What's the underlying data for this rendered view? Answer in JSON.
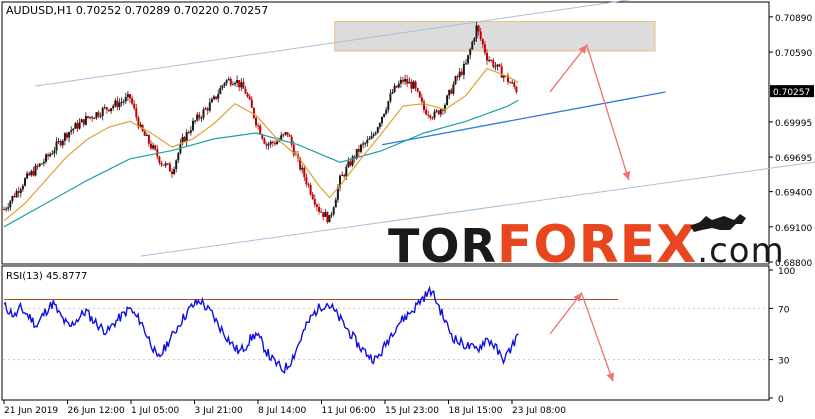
{
  "main_header": "AUDUSD,H1  0.70252 0.70289 0.70220 0.70257",
  "rsi_header": "RSI(13) 45.8777",
  "watermark": {
    "tor": "TOR",
    "forex": "FOREX",
    "com": ".com"
  },
  "colors": {
    "candle_up": "#1a1a1a",
    "candle_down": "#c00000",
    "ma_fast": "#e0a030",
    "ma_slow": "#1aa3a3",
    "channel": "#a8c0d8",
    "support": "#2f78d6",
    "resistance_zone": "#d9d9d9",
    "forecast": "#f07070",
    "rsi_line": "#1010e0",
    "rsi_resistance": "#a0522d",
    "watermark_dark": "#1a1a1a",
    "watermark_accent": "#e8461e"
  },
  "chart_data": [
    {
      "type": "candlestick",
      "symbol": "AUDUSD",
      "timeframe": "H1",
      "ohlc_last": {
        "open": 0.70252,
        "high": 0.70289,
        "low": 0.7022,
        "close": 0.70257
      },
      "current_price": "0.70257",
      "y_ticks": [
        "0.70890",
        "0.70590",
        "0.70257",
        "0.69995",
        "0.69695",
        "0.69400",
        "0.69100",
        "0.68800"
      ],
      "ylim": [
        0.688,
        0.71
      ],
      "x_ticks": [
        "21 Jun 2019",
        "26 Jun 12:00",
        "1 Jul 05:00",
        "3 Jul 21:00",
        "8 Jul 14:00",
        "11 Jul 06:00",
        "15 Jul 23:00",
        "18 Jul 15:00",
        "23 Jul 08:00"
      ],
      "close_path": [
        [
          0,
          0.6925
        ],
        [
          2,
          0.695
        ],
        [
          4,
          0.6968
        ],
        [
          6,
          0.699
        ],
        [
          8,
          0.7003
        ],
        [
          10,
          0.7012
        ],
        [
          12,
          0.702
        ],
        [
          13,
          0.6993
        ],
        [
          15,
          0.6965
        ],
        [
          16,
          0.6958
        ],
        [
          17,
          0.6983
        ],
        [
          18,
          0.6998
        ],
        [
          20,
          0.7018
        ],
        [
          21,
          0.7034
        ],
        [
          22,
          0.7036
        ],
        [
          23,
          0.7025
        ],
        [
          24,
          0.7
        ],
        [
          25,
          0.698
        ],
        [
          26,
          0.6983
        ],
        [
          27,
          0.699
        ],
        [
          28,
          0.6965
        ],
        [
          29,
          0.6945
        ],
        [
          30,
          0.6925
        ],
        [
          31,
          0.6916
        ],
        [
          32,
          0.695
        ],
        [
          33,
          0.6965
        ],
        [
          34,
          0.6978
        ],
        [
          35,
          0.6985
        ],
        [
          36,
          0.7005
        ],
        [
          37,
          0.7025
        ],
        [
          38,
          0.7035
        ],
        [
          39,
          0.703
        ],
        [
          40,
          0.701
        ],
        [
          41,
          0.7005
        ],
        [
          42,
          0.7015
        ],
        [
          43,
          0.7035
        ],
        [
          44,
          0.7048
        ],
        [
          45,
          0.708
        ],
        [
          46,
          0.7055
        ],
        [
          47,
          0.7045
        ],
        [
          48,
          0.7035
        ],
        [
          49,
          0.7025
        ]
      ],
      "ma_fast_path": [
        [
          0,
          0.6915
        ],
        [
          2,
          0.693
        ],
        [
          4,
          0.695
        ],
        [
          6,
          0.697
        ],
        [
          8,
          0.6985
        ],
        [
          10,
          0.6995
        ],
        [
          12,
          0.7
        ],
        [
          14,
          0.699
        ],
        [
          16,
          0.6978
        ],
        [
          18,
          0.6985
        ],
        [
          20,
          0.6998
        ],
        [
          22,
          0.7015
        ],
        [
          24,
          0.7005
        ],
        [
          26,
          0.6985
        ],
        [
          28,
          0.697
        ],
        [
          30,
          0.6945
        ],
        [
          31,
          0.6935
        ],
        [
          32,
          0.6945
        ],
        [
          34,
          0.6968
        ],
        [
          36,
          0.699
        ],
        [
          38,
          0.7013
        ],
        [
          40,
          0.7015
        ],
        [
          42,
          0.701
        ],
        [
          44,
          0.7022
        ],
        [
          46,
          0.7045
        ],
        [
          48,
          0.7038
        ],
        [
          49,
          0.7033
        ]
      ],
      "ma_slow_path": [
        [
          0,
          0.691
        ],
        [
          4,
          0.693
        ],
        [
          8,
          0.695
        ],
        [
          12,
          0.6968
        ],
        [
          16,
          0.6975
        ],
        [
          20,
          0.6985
        ],
        [
          24,
          0.699
        ],
        [
          28,
          0.698
        ],
        [
          32,
          0.6965
        ],
        [
          36,
          0.6975
        ],
        [
          40,
          0.699
        ],
        [
          44,
          0.7
        ],
        [
          48,
          0.7013
        ],
        [
          49,
          0.7018
        ]
      ],
      "resistance_zone": [
        0.706,
        0.7085
      ],
      "channel_upper": [
        [
          3,
          0.703
        ],
        [
          66,
          0.7112
        ]
      ],
      "channel_lower": [
        [
          13,
          0.6885
        ],
        [
          81,
          0.697
        ]
      ],
      "support_line": [
        [
          36,
          0.698
        ],
        [
          63,
          0.7025
        ]
      ],
      "forecast_path": [
        [
          52,
          0.7025
        ],
        [
          55.5,
          0.7065
        ],
        [
          59.5,
          0.695
        ]
      ]
    },
    {
      "type": "line",
      "indicator": "RSI",
      "period": 13,
      "value": 45.8777,
      "y_ticks": [
        "100",
        "70",
        "30",
        "0"
      ],
      "ylim": [
        0,
        100
      ],
      "resistance_level": 77,
      "values": [
        72,
        68,
        64,
        70,
        66,
        62,
        56,
        64,
        70,
        74,
        66,
        60,
        55,
        60,
        64,
        68,
        62,
        58,
        54,
        52,
        58,
        62,
        66,
        70,
        64,
        60,
        50,
        42,
        30,
        36,
        44,
        50,
        58,
        64,
        70,
        74,
        76,
        70,
        66,
        58,
        52,
        46,
        40,
        36,
        40,
        46,
        50,
        44,
        36,
        30,
        26,
        22,
        26,
        34,
        44,
        54,
        62,
        68,
        72,
        74,
        70,
        64,
        58,
        52,
        46,
        40,
        36,
        32,
        30,
        36,
        44,
        52,
        58,
        62,
        66,
        70,
        76,
        80,
        84,
        76,
        66,
        56,
        48,
        44,
        42,
        40,
        38,
        40,
        46,
        44,
        38,
        30,
        34,
        42,
        50
      ],
      "forecast_path": [
        [
          52,
          50
        ],
        [
          55,
          82
        ],
        [
          58,
          13
        ]
      ]
    }
  ]
}
